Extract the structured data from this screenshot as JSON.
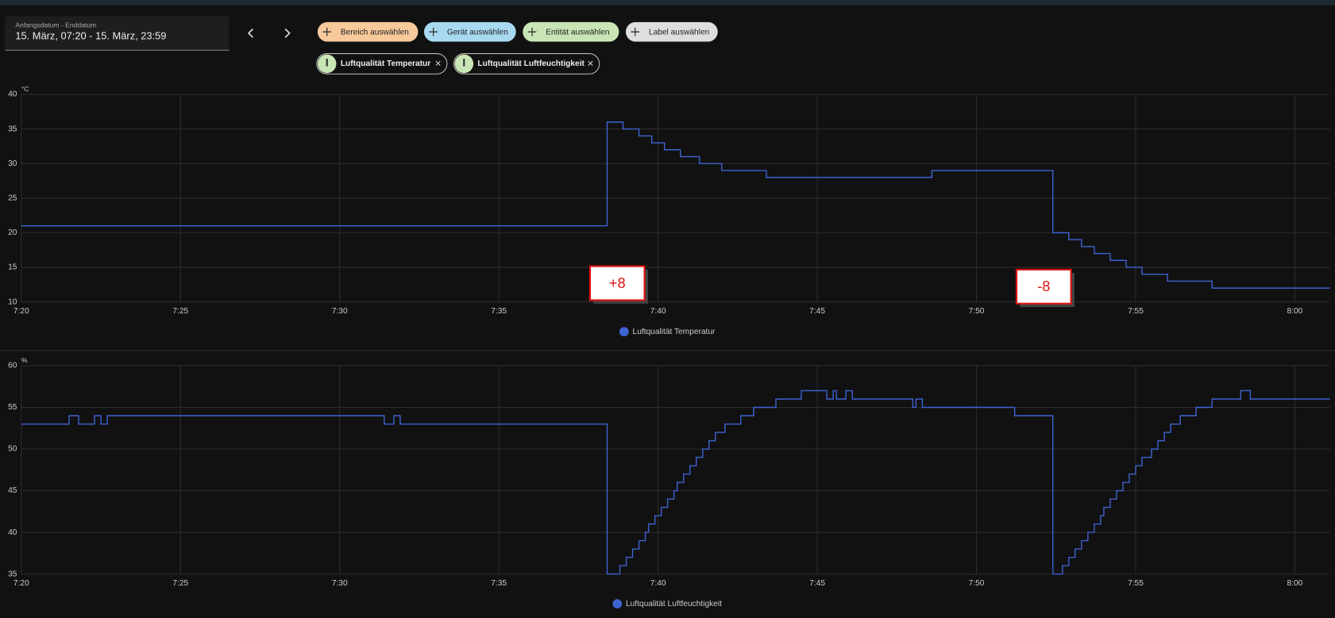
{
  "header": {
    "date_label": "Anfangsdatum - Enddatum",
    "date_value": "15. März, 07:20 - 15. März, 23:59",
    "filters": [
      "Bereich auswählen",
      "Gerät auswählen",
      "Entität auswählen",
      "Label auswählen"
    ],
    "selected": [
      "Luftqualität Temperatur",
      "Luftqualität Luftfeuchtigkeit"
    ]
  },
  "chart_data": [
    {
      "type": "line",
      "step": "after",
      "ylabel": "°C",
      "grid": true,
      "annotations": [
        "+8",
        "-8"
      ],
      "xlim": [
        440,
        481.1
      ],
      "ylim": [
        10,
        40
      ],
      "yticks": [
        10,
        15,
        20,
        25,
        30,
        35,
        40
      ],
      "xticks": [
        {
          "value": 440,
          "label": "7:20"
        },
        {
          "value": 445,
          "label": "7:25"
        },
        {
          "value": 450,
          "label": "7:30"
        },
        {
          "value": 455,
          "label": "7:35"
        },
        {
          "value": 460,
          "label": "7:40"
        },
        {
          "value": 465,
          "label": "7:45"
        },
        {
          "value": 470,
          "label": "7:50"
        },
        {
          "value": 475,
          "label": "7:55"
        },
        {
          "value": 480,
          "label": "8:00"
        }
      ],
      "x": [
        440,
        458.4,
        458.9,
        459.4,
        459.8,
        460.2,
        460.7,
        461.3,
        462.0,
        463.4,
        468.6,
        472.4,
        472.9,
        473.3,
        473.7,
        474.2,
        474.7,
        475.2,
        476.0,
        477.4,
        481.1
      ],
      "series": [
        {
          "name": "Luftqualität Temperatur",
          "color": "#3f63d3",
          "values": [
            21,
            36,
            35,
            34,
            33,
            32,
            31,
            30,
            29,
            28,
            29,
            20,
            19,
            18,
            17,
            16,
            15,
            14,
            13,
            12,
            12
          ]
        }
      ]
    },
    {
      "type": "line",
      "step": "after",
      "ylabel": "%",
      "grid": true,
      "xlim": [
        440,
        481.1
      ],
      "ylim": [
        35,
        60
      ],
      "yticks": [
        35,
        40,
        45,
        50,
        55,
        60
      ],
      "xticks": [
        {
          "value": 440,
          "label": "7:20"
        },
        {
          "value": 445,
          "label": "7:25"
        },
        {
          "value": 450,
          "label": "7:30"
        },
        {
          "value": 455,
          "label": "7:35"
        },
        {
          "value": 460,
          "label": "7:40"
        },
        {
          "value": 465,
          "label": "7:45"
        },
        {
          "value": 470,
          "label": "7:50"
        },
        {
          "value": 475,
          "label": "7:55"
        },
        {
          "value": 480,
          "label": "8:00"
        }
      ],
      "x": [
        440,
        441.5,
        441.8,
        442.3,
        442.5,
        442.7,
        451.4,
        451.7,
        451.9,
        458.4,
        458.8,
        459.0,
        459.2,
        459.4,
        459.6,
        459.7,
        459.9,
        460.1,
        460.3,
        460.5,
        460.6,
        460.8,
        461.0,
        461.2,
        461.4,
        461.6,
        461.8,
        462.1,
        462.6,
        463.0,
        463.7,
        464.5,
        465.3,
        465.5,
        465.6,
        465.9,
        466.1,
        468.0,
        468.1,
        468.3,
        471.2,
        472.4,
        472.7,
        472.9,
        473.1,
        473.3,
        473.5,
        473.7,
        473.9,
        474.0,
        474.2,
        474.4,
        474.6,
        474.8,
        475.0,
        475.2,
        475.5,
        475.7,
        475.9,
        476.1,
        476.4,
        476.9,
        477.4,
        478.3,
        478.6,
        481.1
      ],
      "series": [
        {
          "name": "Luftqualität Luftfeuchtigkeit",
          "color": "#3f63d3",
          "values": [
            53,
            54,
            53,
            54,
            53,
            54,
            53,
            54,
            53,
            35,
            36,
            37,
            38,
            39,
            40,
            41,
            42,
            43,
            44,
            45,
            46,
            47,
            48,
            49,
            50,
            51,
            52,
            53,
            54,
            55,
            56,
            57,
            56,
            57,
            56,
            57,
            56,
            55,
            56,
            55,
            54,
            35,
            36,
            37,
            38,
            39,
            40,
            41,
            42,
            43,
            44,
            45,
            46,
            47,
            48,
            49,
            50,
            51,
            52,
            53,
            54,
            55,
            56,
            57,
            56,
            56
          ]
        }
      ]
    }
  ]
}
